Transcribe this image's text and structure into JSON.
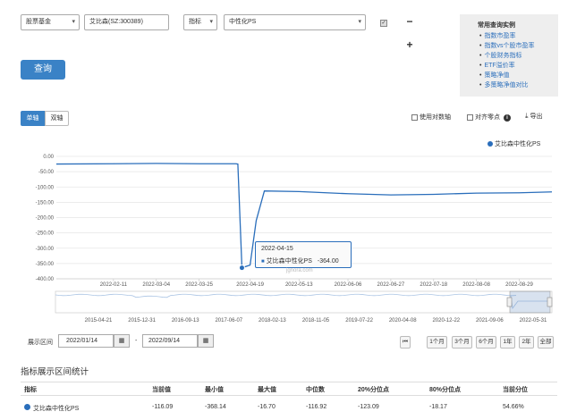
{
  "form": {
    "category_select": "股票基金",
    "stock_input": "艾比森(SZ:300389)",
    "type_select": "指标",
    "indicator_select": "中性化PS",
    "query_button": "查询",
    "minus": "−",
    "plus": "+"
  },
  "examples": {
    "title": "常用查询实例",
    "links": [
      "指数市盈率",
      "指数vs个股市盈率",
      "个股财务指标",
      "ETF溢价率",
      "策略净值",
      "多策略净值对比"
    ]
  },
  "chart_toolbar": {
    "tab_single": "单轴",
    "tab_dual": "双轴",
    "log_axis": "使用对数轴",
    "align_zero": "对齐零点",
    "info": "i",
    "export": "导出"
  },
  "chart_data": {
    "type": "line",
    "series": [
      {
        "name": "艾比森中性化PS",
        "x": [
          "2022-01-14",
          "2022-02-11",
          "2022-03-04",
          "2022-03-25",
          "2022-04-12",
          "2022-04-13",
          "2022-04-15",
          "2022-04-19",
          "2022-04-22",
          "2022-04-26",
          "2022-05-13",
          "2022-06-06",
          "2022-06-27",
          "2022-07-18",
          "2022-08-08",
          "2022-08-29",
          "2022-09-14"
        ],
        "values": [
          -25,
          -24,
          -23,
          -24,
          -24,
          -25,
          -364,
          -355,
          -210,
          -113,
          -115,
          -122,
          -126,
          -124,
          -120,
          -119,
          -116
        ]
      }
    ],
    "y_ticks": [
      "0.00",
      "-50.00",
      "-100.00",
      "-150.00",
      "-200.00",
      "-250.00",
      "-300.00",
      "-350.00",
      "-400.00"
    ],
    "ylim": [
      -400,
      0
    ],
    "x_ticks": [
      "2022-02-11",
      "2022-03-04",
      "2022-03-25",
      "2022-04-19",
      "2022-05-13",
      "2022-06-06",
      "2022-06-27",
      "2022-07-18",
      "2022-08-08",
      "2022-08-29"
    ],
    "grid": true,
    "legend": "top-right",
    "line_color": "#2a6ebb",
    "tooltip": {
      "date": "2022-04-15",
      "label": "艾比森中性化PS",
      "value": "-364.00"
    },
    "watermark": "jgnora.com",
    "navigator_ticks": [
      "2015-04-21",
      "2015-12-31",
      "2016-09-13",
      "2017-06-07",
      "2018-02-13",
      "2018-11-05",
      "2019-07-22",
      "2020-04-08",
      "2020-12-22",
      "2021-09-06",
      "2022-05-31"
    ]
  },
  "range": {
    "label": "展示区间",
    "start": "2022/01/14",
    "sep": "-",
    "end": "2022/09/14",
    "buttons": [
      "⏮",
      "1个月",
      "3个月",
      "6个月",
      "1年",
      "2年",
      "全部"
    ]
  },
  "stats": {
    "title": "指标展示区间统计",
    "headers": [
      "指标",
      "当前值",
      "最小值",
      "最大值",
      "中位数",
      "20%分位点",
      "80%分位点",
      "当前分位"
    ],
    "row": [
      "艾比森中性化PS",
      "-116.09",
      "-368.14",
      "-16.70",
      "-116.92",
      "-123.09",
      "-18.17",
      "54.66%"
    ]
  }
}
